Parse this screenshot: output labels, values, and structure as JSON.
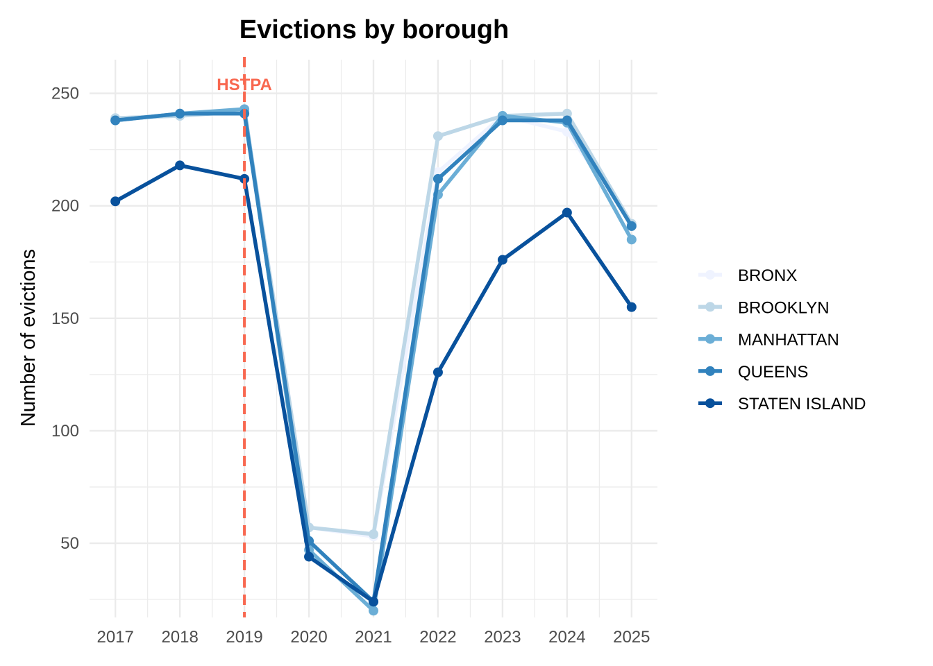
{
  "chart_data": {
    "type": "line",
    "title": "Evictions by borough",
    "xlabel": "",
    "ylabel": "Number of evictions",
    "x": [
      2017,
      2018,
      2019,
      2020,
      2021,
      2022,
      2023,
      2024,
      2025
    ],
    "x_tick_labels": [
      "2017",
      "2018",
      "2019",
      "2020",
      "2021",
      "2022",
      "2023",
      "2024",
      "2025"
    ],
    "y_ticks": [
      50,
      100,
      150,
      200,
      250
    ],
    "y_tick_labels": [
      "50",
      "100",
      "150",
      "200",
      "250"
    ],
    "xlim": [
      2016.6,
      2025.4
    ],
    "ylim": [
      17,
      265
    ],
    "grid": true,
    "legend_position": "right",
    "series": [
      {
        "name": "BRONX",
        "color": "#eff3ff",
        "values": [
          239,
          240,
          243,
          57,
          53,
          215,
          240,
          233,
          192
        ]
      },
      {
        "name": "BROOKLYN",
        "color": "#bdd7e7",
        "values": [
          239,
          240,
          242,
          57,
          54,
          231,
          240,
          241,
          192
        ]
      },
      {
        "name": "MANHATTAN",
        "color": "#6baed6",
        "values": [
          238,
          241,
          243,
          47,
          20,
          205,
          240,
          237,
          185
        ]
      },
      {
        "name": "QUEENS",
        "color": "#3182bd",
        "values": [
          238,
          241,
          241,
          51,
          24,
          212,
          238,
          238,
          191
        ]
      },
      {
        "name": "STATEN ISLAND",
        "color": "#08519c",
        "values": [
          202,
          218,
          212,
          44,
          24,
          126,
          176,
          197,
          155
        ]
      }
    ],
    "annotations": [
      {
        "type": "vline",
        "x": 2019,
        "label": "HSTPA",
        "color": "#f8674f"
      }
    ]
  }
}
